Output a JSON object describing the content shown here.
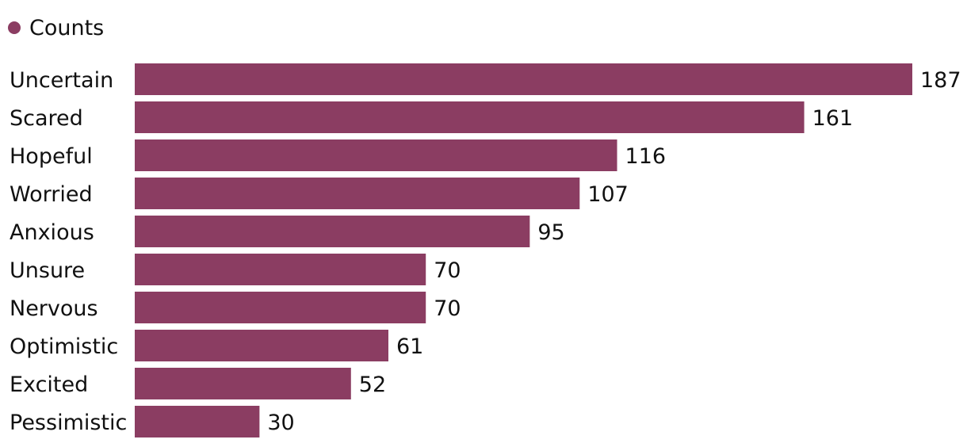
{
  "chart_data": {
    "type": "bar",
    "orientation": "horizontal",
    "categories": [
      "Uncertain",
      "Scared",
      "Hopeful",
      "Worried",
      "Anxious",
      "Unsure",
      "Nervous",
      "Optimistic",
      "Excited",
      "Pessimistic"
    ],
    "series": [
      {
        "name": "Counts",
        "values": [
          187,
          161,
          116,
          107,
          95,
          70,
          70,
          61,
          52,
          30
        ],
        "color": "#8b3d62"
      }
    ],
    "title": "",
    "xlabel": "",
    "ylabel": "",
    "xlim": [
      0,
      187
    ],
    "grid": false,
    "legend": {
      "position": "top-left"
    },
    "data_labels": true
  }
}
